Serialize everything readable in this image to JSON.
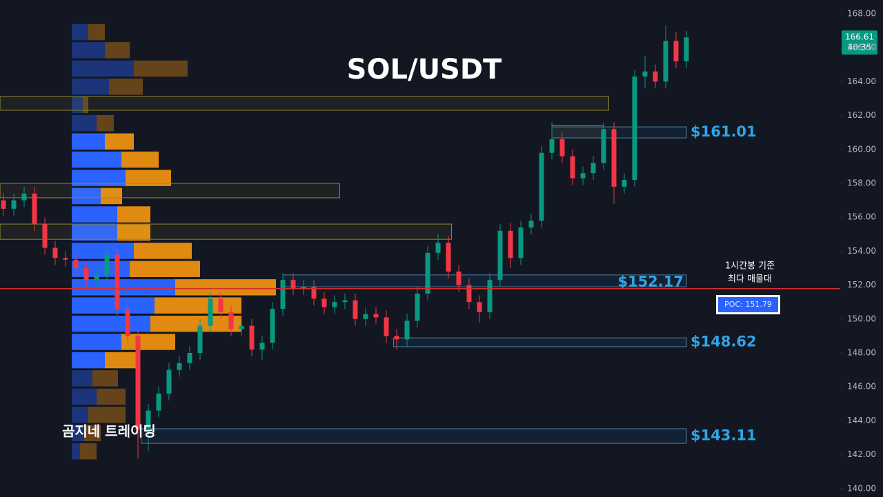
{
  "chart_data": {
    "type": "candlestick",
    "title": "SOL/USDT",
    "watermark": "곰지네 트레이딩",
    "annotation": [
      "1시간봉 기준",
      "최다 매물대"
    ],
    "ylim": [
      140,
      168
    ],
    "yticks": [
      {
        "value": 140,
        "label": "140.00"
      },
      {
        "value": 142,
        "label": "142.00"
      },
      {
        "value": 144,
        "label": "144.00"
      },
      {
        "value": 146,
        "label": "146.00"
      },
      {
        "value": 148,
        "label": "148.00"
      },
      {
        "value": 150,
        "label": "150.00"
      },
      {
        "value": 152,
        "label": "152.00"
      },
      {
        "value": 154,
        "label": "154.00"
      },
      {
        "value": 156,
        "label": "156.00"
      },
      {
        "value": 158,
        "label": "158.00"
      },
      {
        "value": 160,
        "label": "160.00"
      },
      {
        "value": 162,
        "label": "162.00"
      },
      {
        "value": 164,
        "label": "164.00"
      },
      {
        "value": 166,
        "label": "166.00"
      },
      {
        "value": 168,
        "label": "168.00"
      }
    ],
    "up_color": "#089981",
    "down_color": "#f23645",
    "open": [
      157.0,
      156.5,
      157.0,
      157.4,
      155.6,
      154.2,
      153.6,
      153.5,
      153.0,
      152.3,
      152.6,
      153.8,
      150.6,
      149.0,
      143.5,
      144.6,
      145.6,
      147.0,
      147.4,
      148.0,
      149.6,
      151.2,
      150.4,
      149.4,
      149.6,
      148.2,
      148.6,
      150.6,
      152.3,
      151.8,
      151.9,
      151.2,
      150.7,
      151.0,
      151.1,
      150.0,
      150.3,
      150.1,
      149.0,
      148.8,
      149.9,
      151.5,
      153.9,
      154.5,
      152.8,
      152.0,
      151.0,
      150.4,
      152.3,
      155.2,
      153.6,
      155.4,
      155.8,
      159.8,
      160.6,
      159.6,
      158.3,
      158.6,
      159.2,
      161.2,
      157.8,
      158.2,
      164.3,
      164.6,
      164.0,
      166.4,
      165.2
    ],
    "high": [
      157.4,
      157.4,
      157.8,
      157.8,
      156.0,
      154.6,
      154.0,
      153.9,
      153.4,
      153.0,
      154.2,
      154.2,
      151.0,
      149.4,
      145.0,
      146.0,
      147.4,
      147.8,
      148.4,
      150.0,
      151.6,
      151.6,
      150.8,
      150.0,
      150.0,
      149.0,
      151.0,
      152.7,
      152.7,
      152.3,
      152.3,
      151.6,
      151.4,
      151.5,
      151.5,
      150.7,
      150.7,
      150.5,
      149.4,
      150.3,
      151.9,
      154.3,
      155.0,
      154.9,
      153.2,
      152.4,
      151.4,
      152.7,
      155.6,
      155.7,
      155.8,
      156.2,
      160.2,
      161.6,
      161.0,
      160.0,
      159.0,
      159.6,
      161.6,
      161.6,
      158.6,
      164.7,
      165.5,
      165.0,
      167.3,
      166.9,
      167.0
    ],
    "low": [
      156.1,
      156.1,
      156.6,
      155.2,
      153.8,
      153.2,
      153.1,
      152.6,
      151.9,
      151.9,
      152.2,
      150.2,
      148.6,
      141.8,
      142.2,
      144.2,
      145.2,
      146.6,
      147.0,
      147.6,
      149.2,
      150.0,
      149.0,
      149.0,
      147.8,
      147.6,
      148.2,
      150.2,
      151.4,
      151.4,
      150.8,
      150.3,
      150.3,
      150.6,
      149.6,
      149.6,
      149.7,
      148.6,
      148.2,
      148.4,
      149.5,
      151.1,
      153.5,
      152.4,
      151.6,
      150.6,
      149.8,
      150.0,
      151.9,
      153.0,
      153.2,
      155.0,
      155.4,
      159.4,
      159.2,
      157.9,
      157.9,
      158.2,
      158.8,
      156.8,
      157.4,
      157.8,
      163.6,
      163.6,
      163.6,
      164.8,
      164.8
    ],
    "close": [
      156.5,
      157.0,
      157.4,
      155.6,
      154.2,
      153.6,
      153.5,
      153.0,
      152.3,
      152.6,
      153.8,
      150.6,
      149.0,
      143.5,
      144.6,
      145.6,
      147.0,
      147.4,
      148.0,
      149.6,
      151.2,
      150.4,
      149.4,
      149.6,
      148.2,
      148.6,
      150.6,
      152.3,
      151.8,
      151.9,
      151.2,
      150.7,
      151.0,
      151.1,
      150.0,
      150.3,
      150.1,
      149.0,
      148.8,
      149.9,
      151.5,
      153.9,
      154.5,
      152.8,
      152.0,
      151.0,
      150.4,
      152.3,
      155.2,
      153.6,
      155.4,
      155.8,
      159.8,
      160.6,
      159.6,
      158.3,
      158.6,
      159.2,
      161.2,
      157.8,
      158.2,
      164.3,
      164.6,
      164.0,
      166.4,
      165.2,
      166.61
    ],
    "last_price": 166.61,
    "countdown": "40:35",
    "poc": {
      "value": 151.79,
      "label": "POC: 151.79",
      "color": "#d32f2f"
    },
    "volume_profile": {
      "prices": [
        166.92,
        165.85,
        164.77,
        163.7,
        162.62,
        161.55,
        160.47,
        159.4,
        158.32,
        157.25,
        156.17,
        155.1,
        154.02,
        152.95,
        151.87,
        150.8,
        149.72,
        148.65,
        147.57,
        146.5,
        145.42,
        144.35,
        143.27,
        142.2
      ],
      "row_size": 1.075,
      "buy": [
        24,
        48,
        90,
        54,
        16,
        36,
        48,
        72,
        78,
        42,
        66,
        66,
        90,
        84,
        150,
        120,
        114,
        72,
        48,
        30,
        36,
        24,
        18,
        12
      ],
      "sell": [
        24,
        36,
        78,
        49,
        8,
        25,
        42,
        54,
        66,
        31,
        48,
        48,
        84,
        102,
        146,
        126,
        132,
        78,
        49,
        37,
        42,
        54,
        24,
        24
      ],
      "xlim": [
        0,
        1000
      ],
      "value_area": [
        147.0,
        161.0
      ],
      "buy_color": "#2962ff",
      "sell_color": "#e08a12"
    },
    "zones": [
      {
        "top": 163.12,
        "bottom": 162.31,
        "start": -0.33,
        "end": 58.5
      },
      {
        "top": 158.0,
        "bottom": 157.15,
        "start": -0.33,
        "end": 32.5
      },
      {
        "top": 155.6,
        "bottom": 154.7,
        "start": -0.33,
        "end": 43.3
      },
      {
        "top": 161.4,
        "bottom": 160.68,
        "start": 53,
        "end": 58
      }
    ],
    "levels": [
      {
        "value": 161.01,
        "label": "$161.01",
        "top": 161.33,
        "bottom": 160.68,
        "start": 53,
        "end": 66,
        "label_position": "outside"
      },
      {
        "value": 152.17,
        "label": "$152.17",
        "top": 152.6,
        "bottom": 151.9,
        "start": 27,
        "end": 66,
        "label_position": "inside"
      },
      {
        "value": 148.62,
        "label": "$148.62",
        "top": 148.89,
        "bottom": 148.37,
        "start": 37.7,
        "end": 66,
        "label_position": "outside"
      },
      {
        "value": 143.11,
        "label": "$143.11",
        "top": 143.53,
        "bottom": 142.67,
        "start": 13.3,
        "end": 66,
        "label_position": "outside"
      }
    ]
  }
}
